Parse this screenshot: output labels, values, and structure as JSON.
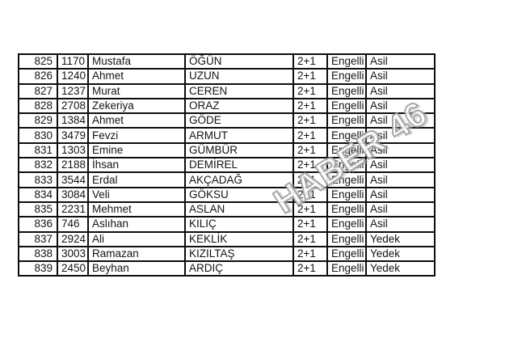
{
  "watermark": {
    "text": "HABER 46",
    "color": "#999999"
  },
  "table": {
    "border_color": "#0d0d0d",
    "text_color": "#141414",
    "rows": [
      [
        "825",
        "1170",
        "Mustafa",
        "ÖĞÜN",
        "2+1",
        "Engelli",
        "Asil"
      ],
      [
        "826",
        "1240",
        "Ahmet",
        "UZUN",
        "2+1",
        "Engelli",
        "Asil"
      ],
      [
        "827",
        "1237",
        "Murat",
        "CEREN",
        "2+1",
        "Engelli",
        "Asil"
      ],
      [
        "828",
        "2708",
        "Zekeriya",
        "ORAZ",
        "2+1",
        "Engelli",
        "Asil"
      ],
      [
        "829",
        "1384",
        "Ahmet",
        "GÖDE",
        "2+1",
        "Engelli",
        "Asil"
      ],
      [
        "830",
        "3479",
        "Fevzi",
        "ARMUT",
        "2+1",
        "Engelli",
        "Asil"
      ],
      [
        "831",
        "1303",
        "Emine",
        "GÜMBÜR",
        "2+1",
        "Engelli",
        "Asil"
      ],
      [
        "832",
        "2188",
        "İhsan",
        "DEMİREL",
        "2+1",
        "Engelli",
        "Asil"
      ],
      [
        "833",
        "3544",
        "Erdal",
        "AKÇADAĞ",
        "2+1",
        "Engelli",
        "Asil"
      ],
      [
        "834",
        "3084",
        "Veli",
        "GÖKSU",
        "2+1",
        "Engelli",
        "Asil"
      ],
      [
        "835",
        "2231",
        "Mehmet",
        "ASLAN",
        "2+1",
        "Engelli",
        "Asil"
      ],
      [
        "836",
        "746",
        "Aslıhan",
        "KILIÇ",
        "2+1",
        "Engelli",
        "Asil"
      ],
      [
        "837",
        "2924",
        "Ali",
        "KEKLİK",
        "2+1",
        "Engelli",
        "Yedek"
      ],
      [
        "838",
        "3003",
        "Ramazan",
        "KIZILTAŞ",
        "2+1",
        "Engelli",
        "Yedek"
      ],
      [
        "839",
        "2450",
        "Beyhan",
        "ARDIÇ",
        "2+1",
        "Engelli",
        "Yedek"
      ]
    ]
  }
}
